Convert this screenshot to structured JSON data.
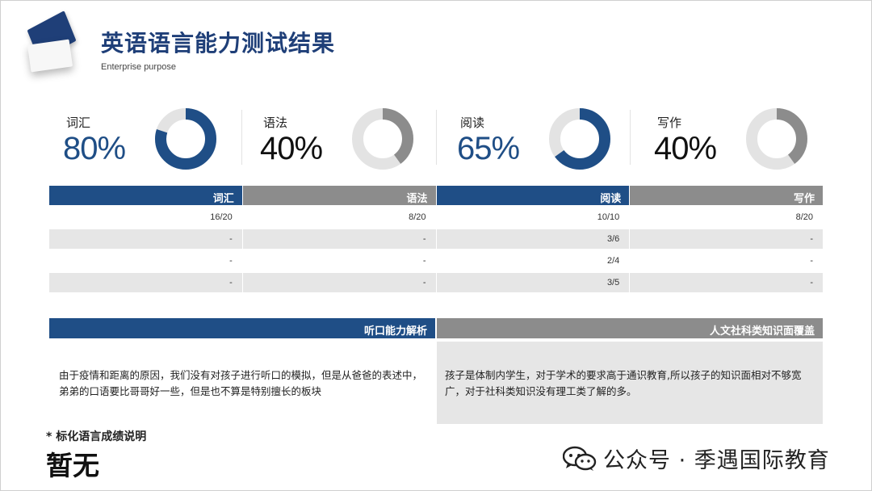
{
  "header": {
    "title": "英语语言能力测试结果",
    "subtitle": "Enterprise purpose"
  },
  "colors": {
    "navy": "#1f4e86",
    "gray": "#8c8c8c",
    "ring_track": "#e3e3e3"
  },
  "stats": [
    {
      "label": "词汇",
      "value": "80%",
      "fraction": 0.8,
      "color": "#1f4e86"
    },
    {
      "label": "语法",
      "value": "40%",
      "fraction": 0.4,
      "color": "#8c8c8c"
    },
    {
      "label": "阅读",
      "value": "65%",
      "fraction": 0.65,
      "color": "#1f4e86"
    },
    {
      "label": "写作",
      "value": "40%",
      "fraction": 0.4,
      "color": "#8c8c8c"
    }
  ],
  "table": {
    "headers": [
      "词汇",
      "语法",
      "阅读",
      "写作"
    ],
    "rows": [
      [
        "16/20",
        "8/20",
        "10/10",
        "8/20"
      ],
      [
        "-",
        "-",
        "3/6",
        "-"
      ],
      [
        "-",
        "-",
        "2/4",
        "-"
      ],
      [
        "-",
        "-",
        "3/5",
        "-"
      ]
    ]
  },
  "analysis": {
    "listening": {
      "title": "听口能力解析",
      "text": "由于疫情和距离的原因，我们没有对孩子进行听口的模拟，但是从爸爸的表述中，弟弟的口语要比哥哥好一些，但是也不算是特别擅长的板块"
    },
    "humanities": {
      "title": "人文社科类知识面覆盖",
      "text": "孩子是体制内学生，对于学术的要求高于通识教育,所以孩子的知识面相对不够宽广，对于社科类知识没有理工类了解的多。"
    }
  },
  "note": {
    "label": "* 标化语言成绩说明",
    "value": "暂无"
  },
  "watermark": {
    "text": "公众号 · 季遇国际教育",
    "icon": "wechat-icon"
  }
}
